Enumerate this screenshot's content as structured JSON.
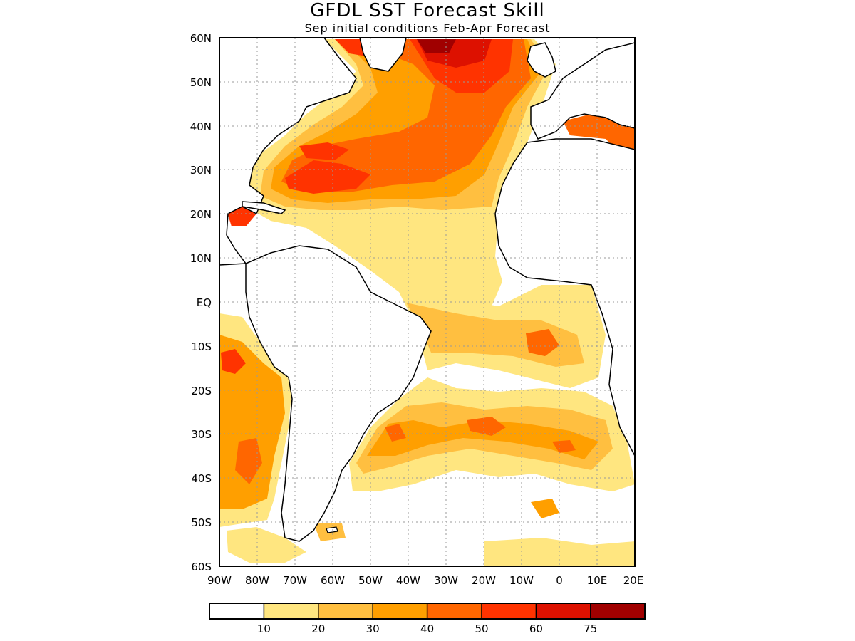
{
  "title": "GFDL SST Forecast Skill",
  "subtitle": "Sep initial conditions  Feb-Apr Forecast",
  "axes": {
    "lat_labels": [
      "60N",
      "50N",
      "40N",
      "30N",
      "20N",
      "10N",
      "EQ",
      "10S",
      "20S",
      "30S",
      "40S",
      "50S",
      "60S"
    ],
    "lon_labels": [
      "90W",
      "80W",
      "70W",
      "60W",
      "50W",
      "40W",
      "30W",
      "20W",
      "10W",
      "0",
      "10E",
      "20E"
    ]
  },
  "colorbar": {
    "ticks": [
      "10",
      "20",
      "30",
      "40",
      "50",
      "60",
      "75"
    ],
    "colors": [
      "#ffffff",
      "#ffe680",
      "#ffbf40",
      "#ff9f00",
      "#ff6600",
      "#ff3300",
      "#dd1100",
      "#a00000"
    ]
  },
  "map": {
    "lon_range": [
      -90,
      20
    ],
    "lat_range": [
      -60,
      60
    ],
    "gridlines": "dotted",
    "land_color": "#ffffff",
    "coastline_color": "#000000"
  }
}
